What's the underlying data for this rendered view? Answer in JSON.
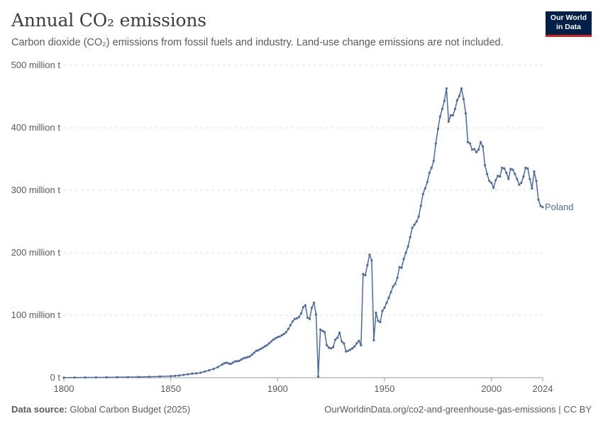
{
  "header": {
    "title": "Annual CO₂ emissions",
    "subtitle": "Carbon dioxide (CO₂) emissions from fossil fuels and industry. Land-use change emissions are not included."
  },
  "logo": {
    "line1": "Our World",
    "line2": "in Data"
  },
  "footer": {
    "source_label": "Data source:",
    "source_value": "Global Carbon Budget (2025)",
    "url": "OurWorldinData.org/co2-and-greenhouse-gas-emissions | CC BY"
  },
  "colors": {
    "series": "#4c6a9c",
    "grid": "#dddddd",
    "axis": "#999999",
    "text": "#5b5b5b"
  },
  "chart_data": {
    "type": "line",
    "title": "Annual CO₂ emissions",
    "xlim": [
      1800,
      2024
    ],
    "ylim": [
      0,
      500
    ],
    "yunit": "million t",
    "y_ticks": [
      0,
      100,
      200,
      300,
      400,
      500
    ],
    "y_tick_labels": [
      "0 t",
      "100 million t",
      "200 million t",
      "300 million t",
      "400 million t",
      "500 million t"
    ],
    "x_ticks": [
      1800,
      1850,
      1900,
      1950,
      2000,
      2024
    ],
    "x_tick_labels": [
      "1800",
      "1850",
      "1900",
      "1950",
      "2000",
      "2024"
    ],
    "grid": "horizontal dashed",
    "series": [
      {
        "name": "Poland",
        "color": "#4c6a9c",
        "points": [
          [
            1800,
            0.2
          ],
          [
            1805,
            0.3
          ],
          [
            1810,
            0.4
          ],
          [
            1815,
            0.5
          ],
          [
            1820,
            0.6
          ],
          [
            1825,
            0.8
          ],
          [
            1830,
            1.0
          ],
          [
            1835,
            1.2
          ],
          [
            1840,
            1.5
          ],
          [
            1845,
            2.0
          ],
          [
            1850,
            2.6
          ],
          [
            1852,
            3.0
          ],
          [
            1854,
            3.6
          ],
          [
            1856,
            4.5
          ],
          [
            1858,
            5.5
          ],
          [
            1860,
            6.5
          ],
          [
            1862,
            7.0
          ],
          [
            1864,
            8.0
          ],
          [
            1866,
            10.0
          ],
          [
            1868,
            12.0
          ],
          [
            1870,
            14.0
          ],
          [
            1872,
            17.0
          ],
          [
            1874,
            21.0
          ],
          [
            1875,
            23.0
          ],
          [
            1876,
            24.0
          ],
          [
            1877,
            23.0
          ],
          [
            1878,
            22.0
          ],
          [
            1879,
            24.0
          ],
          [
            1880,
            26.0
          ],
          [
            1881,
            26.5
          ],
          [
            1882,
            27.0
          ],
          [
            1883,
            29.0
          ],
          [
            1884,
            31.0
          ],
          [
            1885,
            32.0
          ],
          [
            1886,
            33.0
          ],
          [
            1887,
            34.0
          ],
          [
            1888,
            37.0
          ],
          [
            1889,
            40.0
          ],
          [
            1890,
            43.0
          ],
          [
            1891,
            44.0
          ],
          [
            1892,
            46.0
          ],
          [
            1893,
            48.0
          ],
          [
            1894,
            50.0
          ],
          [
            1895,
            52.0
          ],
          [
            1896,
            55.0
          ],
          [
            1897,
            58.0
          ],
          [
            1898,
            61.0
          ],
          [
            1899,
            63.0
          ],
          [
            1900,
            65.0
          ],
          [
            1901,
            66.0
          ],
          [
            1902,
            68.0
          ],
          [
            1903,
            70.0
          ],
          [
            1904,
            73.0
          ],
          [
            1905,
            78.0
          ],
          [
            1906,
            84.0
          ],
          [
            1907,
            90.0
          ],
          [
            1908,
            94.0
          ],
          [
            1909,
            95.0
          ],
          [
            1910,
            97.0
          ],
          [
            1911,
            103.0
          ],
          [
            1912,
            113.0
          ],
          [
            1913,
            116.0
          ],
          [
            1914,
            96.0
          ],
          [
            1915,
            94.0
          ],
          [
            1916,
            112.0
          ],
          [
            1917,
            120.0
          ],
          [
            1918,
            101.0
          ],
          [
            1919,
            2.0
          ],
          [
            1920,
            77.0
          ],
          [
            1921,
            75.0
          ],
          [
            1922,
            73.0
          ],
          [
            1923,
            52.0
          ],
          [
            1924,
            48.0
          ],
          [
            1925,
            47.0
          ],
          [
            1926,
            49.0
          ],
          [
            1927,
            61.0
          ],
          [
            1928,
            64.0
          ],
          [
            1929,
            72.0
          ],
          [
            1930,
            58.0
          ],
          [
            1931,
            55.0
          ],
          [
            1932,
            42.0
          ],
          [
            1933,
            43.0
          ],
          [
            1934,
            45.0
          ],
          [
            1935,
            47.0
          ],
          [
            1936,
            50.0
          ],
          [
            1937,
            55.0
          ],
          [
            1938,
            59.0
          ],
          [
            1939,
            52.0
          ],
          [
            1940,
            166.0
          ],
          [
            1941,
            164.0
          ],
          [
            1942,
            180.0
          ],
          [
            1943,
            197.0
          ],
          [
            1944,
            188.0
          ],
          [
            1945,
            60.0
          ],
          [
            1946,
            104.0
          ],
          [
            1947,
            91.0
          ],
          [
            1948,
            89.0
          ],
          [
            1949,
            107.0
          ],
          [
            1950,
            112.0
          ],
          [
            1951,
            120.0
          ],
          [
            1952,
            128.0
          ],
          [
            1953,
            137.0
          ],
          [
            1954,
            146.0
          ],
          [
            1955,
            150.0
          ],
          [
            1956,
            160.0
          ],
          [
            1957,
            177.0
          ],
          [
            1958,
            176.0
          ],
          [
            1959,
            190.0
          ],
          [
            1960,
            200.0
          ],
          [
            1961,
            210.0
          ],
          [
            1962,
            225.0
          ],
          [
            1963,
            240.0
          ],
          [
            1964,
            245.0
          ],
          [
            1965,
            250.0
          ],
          [
            1966,
            258.0
          ],
          [
            1967,
            275.0
          ],
          [
            1968,
            294.0
          ],
          [
            1969,
            303.0
          ],
          [
            1970,
            313.0
          ],
          [
            1971,
            328.0
          ],
          [
            1972,
            336.0
          ],
          [
            1973,
            347.0
          ],
          [
            1974,
            375.0
          ],
          [
            1975,
            398.0
          ],
          [
            1976,
            418.0
          ],
          [
            1977,
            430.0
          ],
          [
            1978,
            443.0
          ],
          [
            1979,
            463.0
          ],
          [
            1980,
            410.0
          ],
          [
            1981,
            420.0
          ],
          [
            1982,
            420.0
          ],
          [
            1983,
            430.0
          ],
          [
            1984,
            444.0
          ],
          [
            1985,
            451.0
          ],
          [
            1986,
            463.0
          ],
          [
            1987,
            446.0
          ],
          [
            1988,
            423.0
          ],
          [
            1989,
            377.0
          ],
          [
            1990,
            375.0
          ],
          [
            1991,
            365.0
          ],
          [
            1992,
            366.0
          ],
          [
            1993,
            361.0
          ],
          [
            1994,
            365.0
          ],
          [
            1995,
            377.0
          ],
          [
            1996,
            370.0
          ],
          [
            1997,
            340.0
          ],
          [
            1998,
            326.0
          ],
          [
            1999,
            315.0
          ],
          [
            2000,
            312.0
          ],
          [
            2001,
            304.0
          ],
          [
            2002,
            316.0
          ],
          [
            2003,
            323.0
          ],
          [
            2004,
            322.0
          ],
          [
            2005,
            336.0
          ],
          [
            2006,
            335.0
          ],
          [
            2007,
            328.0
          ],
          [
            2008,
            318.0
          ],
          [
            2009,
            334.0
          ],
          [
            2010,
            333.0
          ],
          [
            2011,
            326.0
          ],
          [
            2012,
            318.0
          ],
          [
            2013,
            309.0
          ],
          [
            2014,
            312.0
          ],
          [
            2015,
            322.0
          ],
          [
            2016,
            336.0
          ],
          [
            2017,
            335.0
          ],
          [
            2018,
            318.0
          ],
          [
            2019,
            303.0
          ],
          [
            2020,
            330.0
          ],
          [
            2021,
            315.0
          ],
          [
            2022,
            285.0
          ],
          [
            2023,
            275.0
          ],
          [
            2024,
            273.0
          ]
        ]
      }
    ]
  }
}
